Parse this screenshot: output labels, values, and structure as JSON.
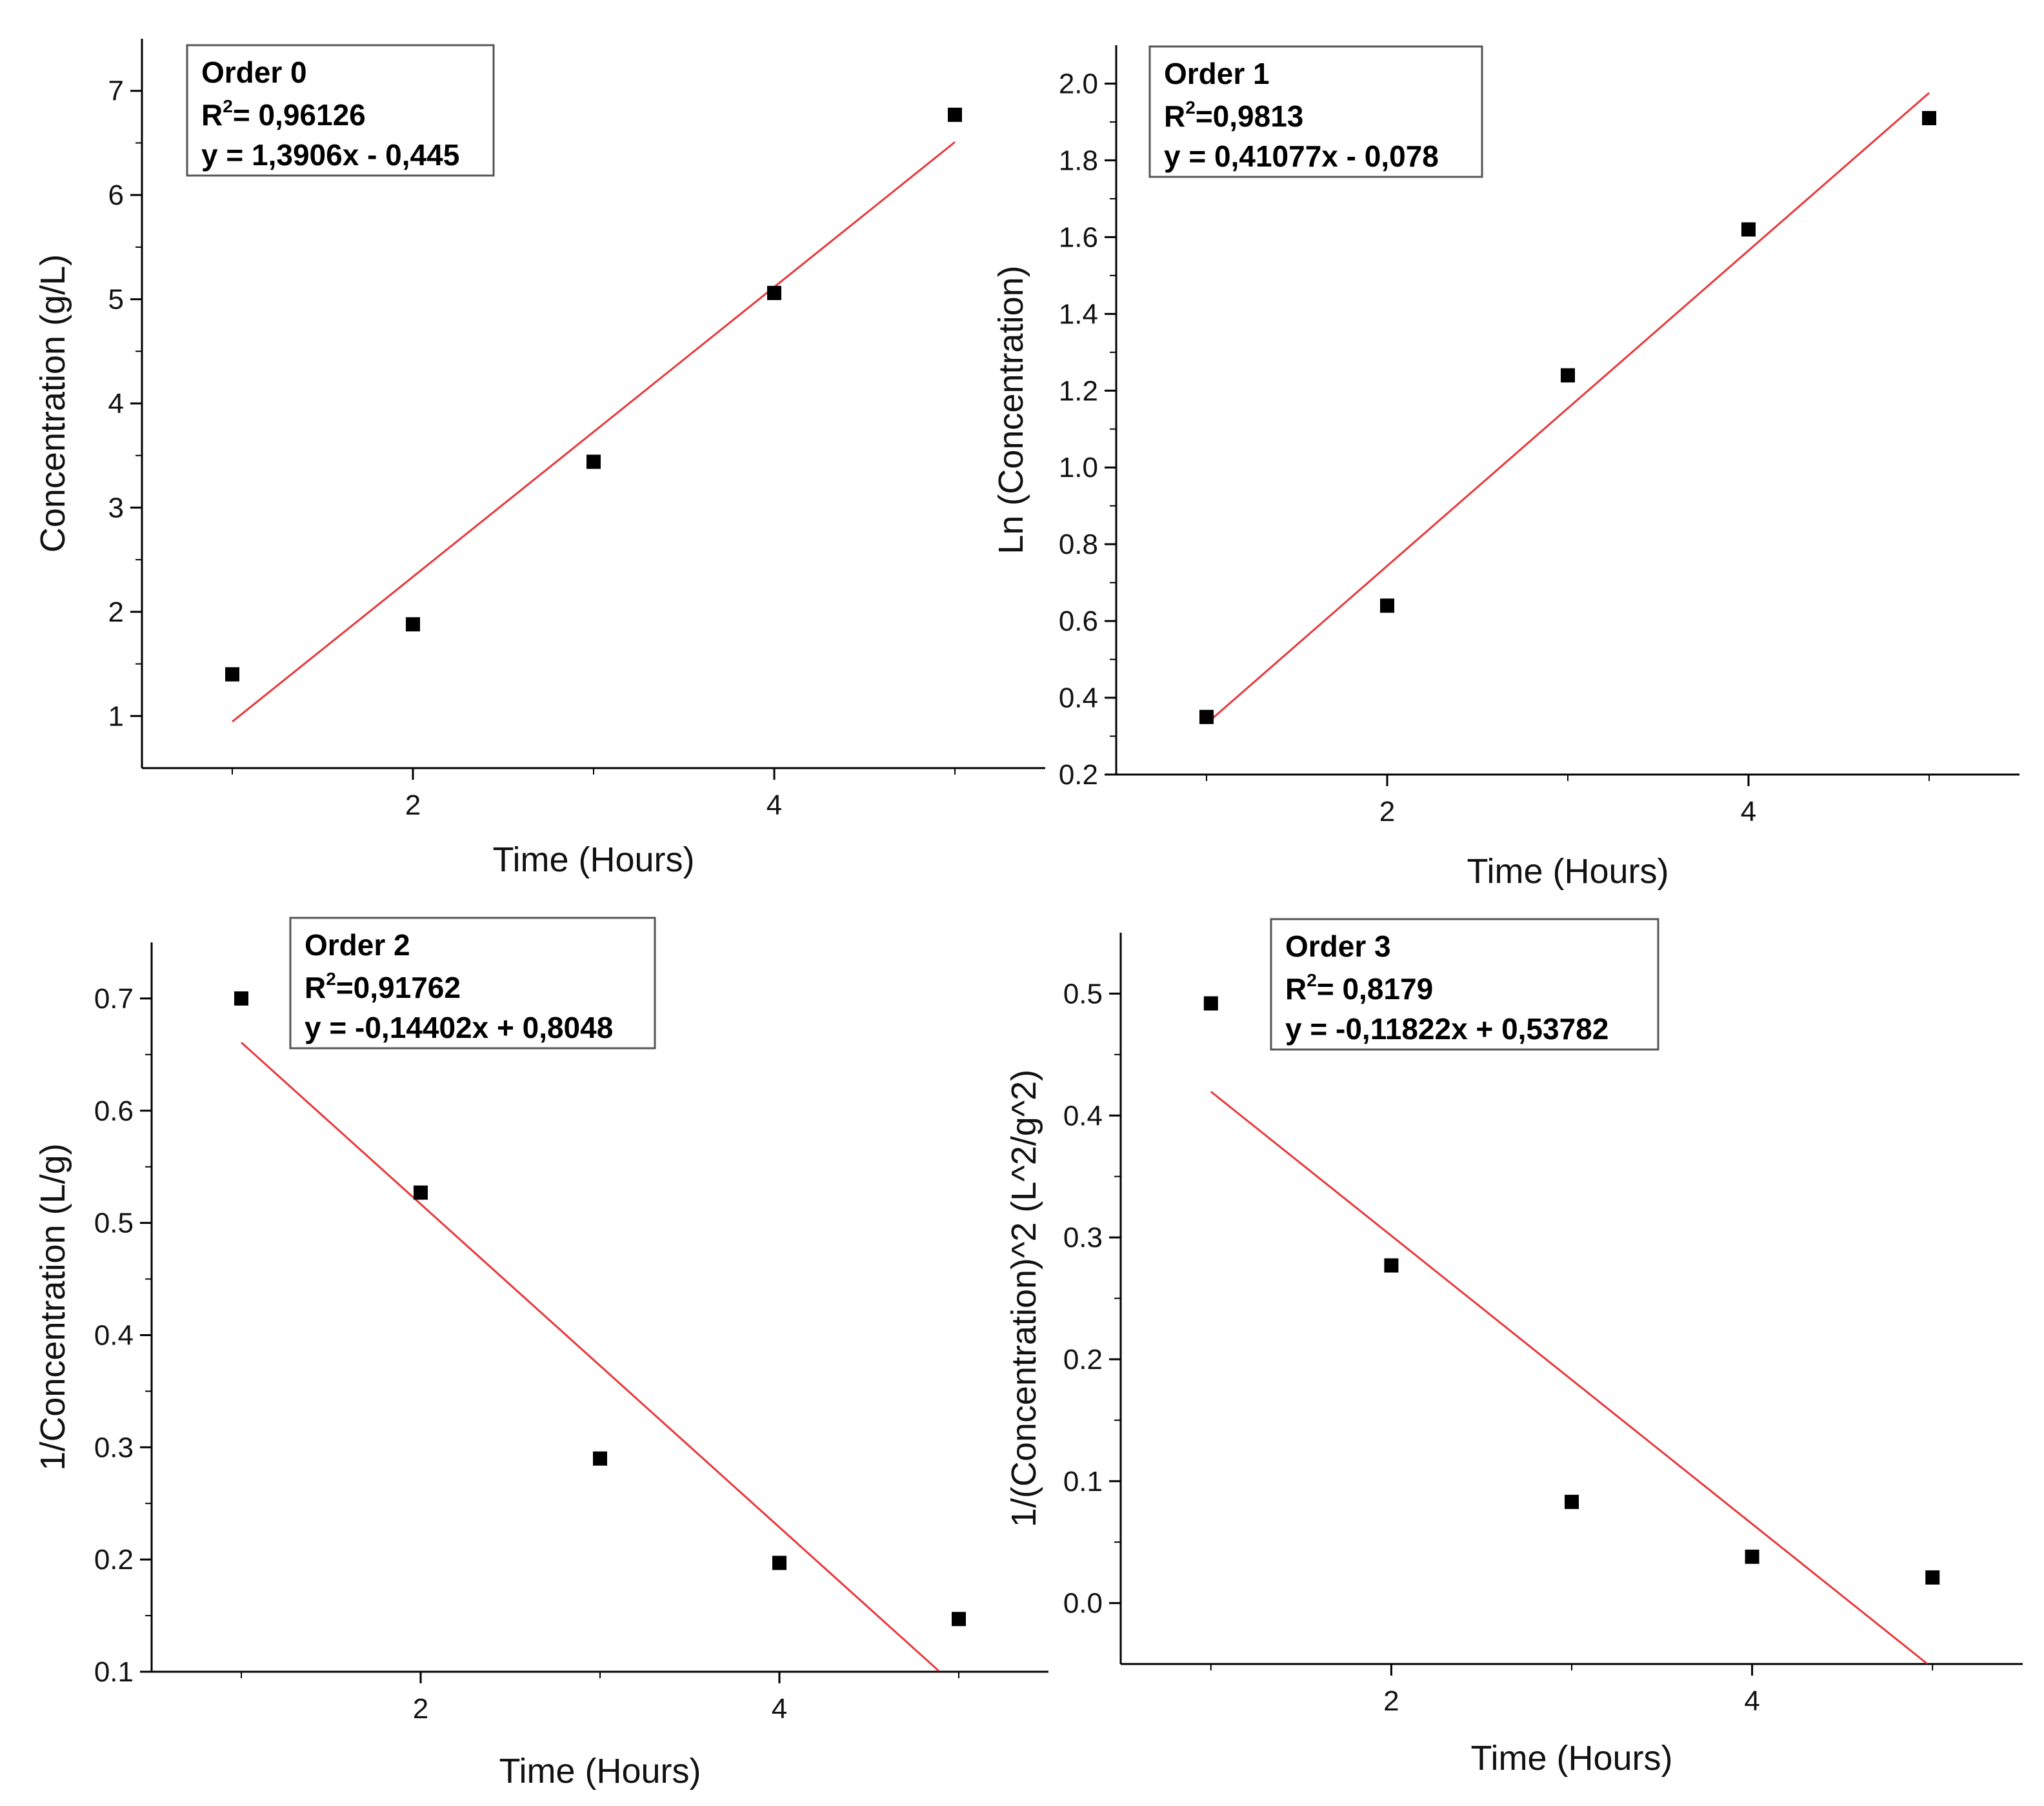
{
  "colors": {
    "marker": "#000000",
    "fit_line": "#e8383b",
    "axis": "#000000",
    "legend_border": "#555555"
  },
  "chart_data": [
    {
      "type": "scatter",
      "title": "Order 0",
      "r2_label": "R",
      "r2_sup": "2",
      "r2_value": "= 0,96126",
      "equation": "y = 1,3906x - 0,445",
      "xlabel": "Time (Hours)",
      "ylabel": "Concentration (g/L)",
      "xlim": [
        0.5,
        5.5
      ],
      "ylim": [
        0.5,
        7.5
      ],
      "x_ticks": [
        2,
        4
      ],
      "y_ticks": [
        1,
        2,
        3,
        4,
        5,
        6,
        7
      ],
      "x_tick_labels": [
        "2",
        "4"
      ],
      "y_tick_labels": [
        "1",
        "2",
        "3",
        "4",
        "5",
        "6",
        "7"
      ],
      "x": [
        1,
        2,
        3,
        4,
        5
      ],
      "y": [
        1.4,
        1.88,
        3.44,
        5.06,
        6.77
      ],
      "fit": {
        "slope": 1.3906,
        "intercept": -0.445,
        "x_range": [
          1,
          5
        ]
      }
    },
    {
      "type": "scatter",
      "title": "Order 1",
      "r2_label": "R",
      "r2_sup": "2",
      "r2_value": "=0,9813",
      "equation": "y = 0,41077x - 0,078",
      "xlabel": "Time (Hours)",
      "ylabel": "Ln (Concentration)",
      "xlim": [
        0.5,
        5.5
      ],
      "ylim": [
        0.2,
        2.1
      ],
      "x_ticks": [
        2,
        4
      ],
      "y_ticks": [
        0.2,
        0.4,
        0.6,
        0.8,
        1.0,
        1.2,
        1.4,
        1.6,
        1.8,
        2.0
      ],
      "x_tick_labels": [
        "2",
        "4"
      ],
      "y_tick_labels": [
        "0.2",
        "0.4",
        "0.6",
        "0.8",
        "1.0",
        "1.2",
        "1.4",
        "1.6",
        "1.8",
        "2.0"
      ],
      "x": [
        1,
        2,
        3,
        4,
        5
      ],
      "y": [
        0.35,
        0.64,
        1.24,
        1.62,
        1.91
      ],
      "fit": {
        "slope": 0.41077,
        "intercept": -0.078,
        "x_range": [
          1,
          5
        ]
      }
    },
    {
      "type": "scatter",
      "title": "Order 2",
      "r2_label": "R",
      "r2_sup": "2",
      "r2_value": "=0,91762",
      "equation": "y = -0,14402x + 0,8048",
      "xlabel": "Time (Hours)",
      "ylabel": "1/Concentration (L/g)",
      "xlim": [
        0.5,
        5.5
      ],
      "ylim": [
        0.1,
        0.75
      ],
      "x_ticks": [
        2,
        4
      ],
      "y_ticks": [
        0.1,
        0.2,
        0.3,
        0.4,
        0.5,
        0.6,
        0.7
      ],
      "x_tick_labels": [
        "2",
        "4"
      ],
      "y_tick_labels": [
        "0.1",
        "0.2",
        "0.3",
        "0.4",
        "0.5",
        "0.6",
        "0.7"
      ],
      "x": [
        1,
        2,
        3,
        4,
        5
      ],
      "y": [
        0.7,
        0.527,
        0.29,
        0.197,
        0.147
      ],
      "fit": {
        "slope": -0.14402,
        "intercept": 0.8048,
        "x_range": [
          1,
          4.89
        ]
      }
    },
    {
      "type": "scatter",
      "title": "Order 3",
      "r2_label": "R",
      "r2_sup": "2",
      "r2_value": "= 0,8179",
      "equation": "y = -0,11822x + 0,53782",
      "xlabel": "Time (Hours)",
      "ylabel": "1/(Concentration)^2 (L^2/g^2)",
      "xlim": [
        0.5,
        5.5
      ],
      "ylim": [
        -0.05,
        0.55
      ],
      "x_ticks": [
        2,
        4
      ],
      "y_ticks": [
        0.0,
        0.1,
        0.2,
        0.3,
        0.4,
        0.5
      ],
      "x_tick_labels": [
        "2",
        "4"
      ],
      "y_tick_labels": [
        "0.0",
        "0.1",
        "0.2",
        "0.3",
        "0.4",
        "0.5"
      ],
      "x": [
        1,
        2,
        3,
        4,
        5
      ],
      "y": [
        0.492,
        0.277,
        0.083,
        0.038,
        0.021
      ],
      "fit": {
        "slope": -0.11822,
        "intercept": 0.53782,
        "x_range": [
          1,
          4.97
        ]
      }
    }
  ]
}
